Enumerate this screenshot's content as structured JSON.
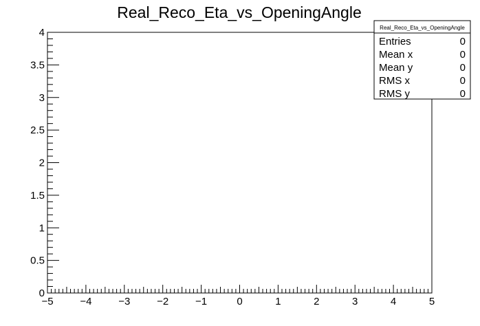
{
  "chart_data": {
    "type": "scatter",
    "title": "Real_Reco_Eta_vs_OpeningAngle",
    "xlabel": "",
    "ylabel": "",
    "xlim": [
      -5,
      5
    ],
    "ylim": [
      0,
      4
    ],
    "x_major_ticks": [
      -5,
      -4,
      -3,
      -2,
      -1,
      0,
      1,
      2,
      3,
      4,
      5
    ],
    "x_tick_labels": [
      "−5",
      "−4",
      "−3",
      "−2",
      "−1",
      "0",
      "1",
      "2",
      "3",
      "4",
      "5"
    ],
    "y_major_ticks": [
      0,
      0.5,
      1,
      1.5,
      2,
      2.5,
      3,
      3.5,
      4
    ],
    "y_tick_labels": [
      "0",
      "0.5",
      "1",
      "1.5",
      "2",
      "2.5",
      "3",
      "3.5",
      "4"
    ],
    "grid": false,
    "series": [
      {
        "x": [],
        "y": []
      }
    ],
    "stats_box": {
      "title": "Real_Reco_Eta_vs_OpeningAngle",
      "placement": "top-right",
      "rows": [
        {
          "label": "Entries",
          "value": "0"
        },
        {
          "label": "Mean x",
          "value": "0"
        },
        {
          "label": "Mean y",
          "value": "0"
        },
        {
          "label": "RMS x",
          "value": "0"
        },
        {
          "label": "RMS y",
          "value": "0"
        }
      ]
    }
  }
}
